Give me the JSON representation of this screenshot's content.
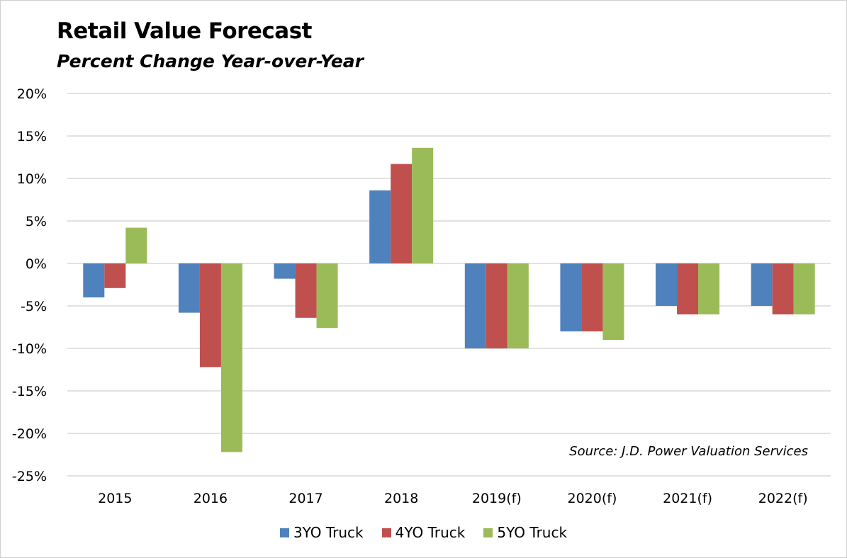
{
  "chart_data": {
    "type": "bar",
    "title": "Retail Value Forecast",
    "subtitle": "Percent Change Year-over-Year",
    "categories": [
      "2015",
      "2016",
      "2017",
      "2018",
      "2019(f)",
      "2020(f)",
      "2021(f)",
      "2022(f)"
    ],
    "series": [
      {
        "name": "3YO Truck",
        "color": "#4F81BD",
        "values": [
          -4.0,
          -5.8,
          -1.8,
          8.6,
          -10,
          -8,
          -5,
          -5
        ]
      },
      {
        "name": "4YO Truck",
        "color": "#C0504D",
        "values": [
          -2.9,
          -12.2,
          -6.4,
          11.7,
          -10,
          -8,
          -6,
          -6
        ]
      },
      {
        "name": "5YO Truck",
        "color": "#9BBB59",
        "values": [
          4.2,
          -22.2,
          -7.6,
          13.6,
          -10,
          -9,
          -6,
          -6
        ]
      }
    ],
    "ylim": [
      -25,
      20
    ],
    "yticks": [
      20,
      15,
      10,
      5,
      0,
      -5,
      -10,
      -15,
      -20,
      -25
    ],
    "ytick_labels": [
      "20%",
      "15%",
      "10%",
      "5%",
      "0%",
      "-5%",
      "-10%",
      "-15%",
      "-20%",
      "-25%"
    ],
    "xlabel": "",
    "ylabel": "",
    "grid": true,
    "legend_position": "bottom",
    "annotation": "Source: J.D. Power Valuation Services"
  }
}
